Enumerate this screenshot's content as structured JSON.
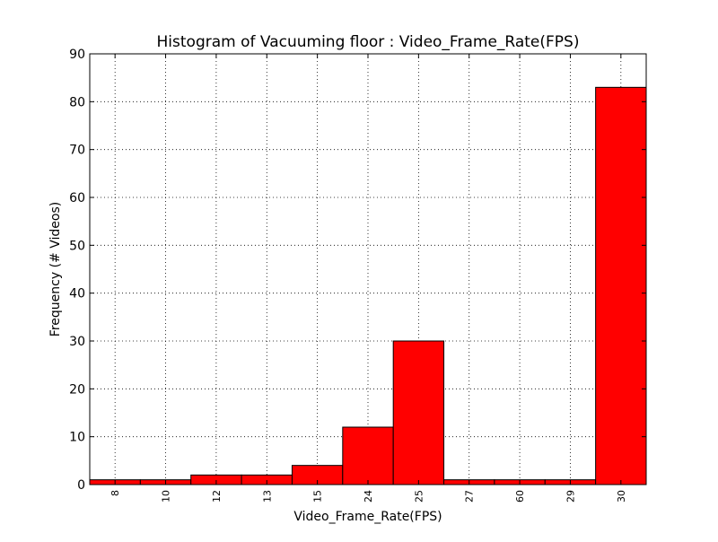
{
  "chart_data": {
    "type": "bar",
    "title": "Histogram of Vacuuming floor : Video_Frame_Rate(FPS)",
    "xlabel": "Video_Frame_Rate(FPS)",
    "ylabel": "Frequency (# Videos)",
    "categories": [
      "8",
      "10",
      "12",
      "13",
      "15",
      "24",
      "25",
      "27",
      "60",
      "29",
      "30"
    ],
    "values": [
      1,
      1,
      2,
      2,
      4,
      12,
      30,
      1,
      1,
      1,
      83
    ],
    "ylim": [
      0,
      90
    ],
    "yticks": [
      0,
      10,
      20,
      30,
      40,
      50,
      60,
      70,
      80,
      90
    ],
    "grid": true,
    "bar_color": "#ff0000",
    "edge_color": "#000000"
  }
}
